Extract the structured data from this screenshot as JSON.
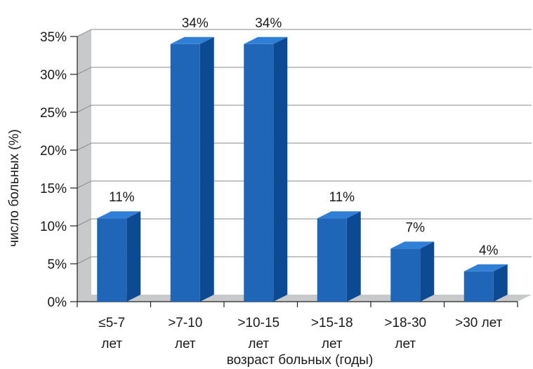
{
  "chart_data": {
    "type": "bar",
    "categories": [
      [
        "≤5-7",
        "лет"
      ],
      [
        ">7-10",
        "лет"
      ],
      [
        ">10-15",
        "лет"
      ],
      [
        ">15-18",
        "лет"
      ],
      [
        ">18-30",
        "лет"
      ],
      [
        ">30 лет"
      ]
    ],
    "values": [
      11,
      34,
      34,
      11,
      7,
      4
    ],
    "data_labels": [
      "11%",
      "34%",
      "34%",
      "11%",
      "7%",
      "4%"
    ],
    "yticks": [
      "0%",
      "5%",
      "10%",
      "15%",
      "20%",
      "25%",
      "30%",
      "35%"
    ],
    "ylim": [
      0,
      35
    ],
    "xlabel": "возраст больных (годы)",
    "ylabel": "число больных (%)",
    "grid": true,
    "style": "3d",
    "colors": {
      "bar_front": "#1f66b8",
      "bar_side": "#0d4a94",
      "bar_top": "#2f7fd6",
      "wall": "#c7c9cb",
      "grid": "#888888"
    }
  }
}
